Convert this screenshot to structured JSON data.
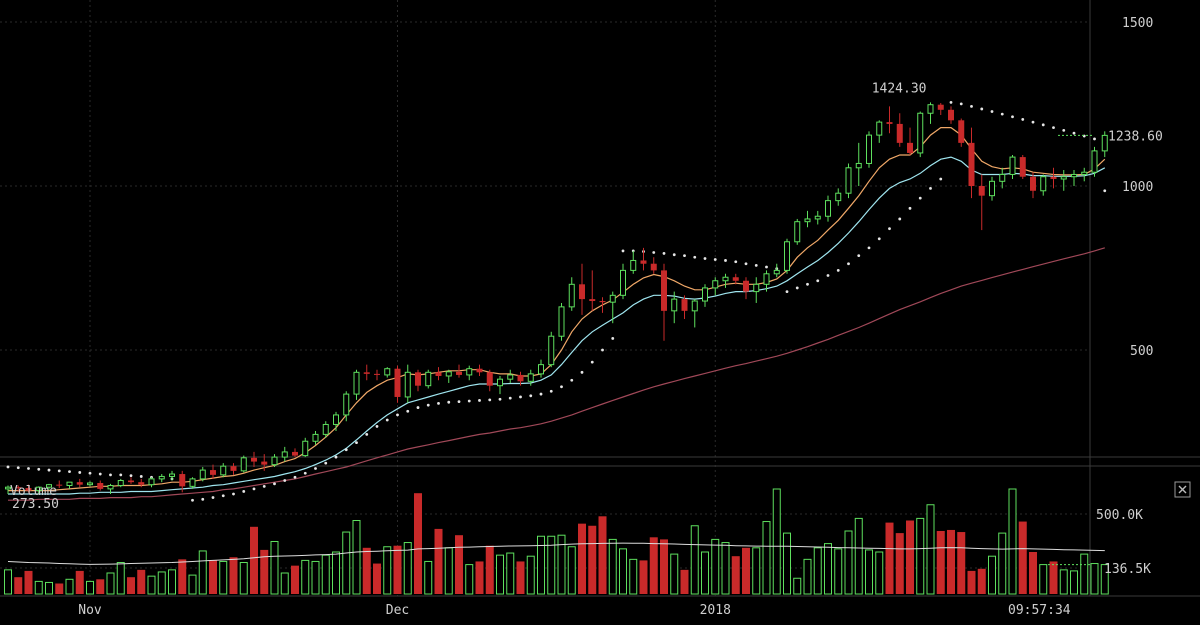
{
  "colors": {
    "up": "#5ee05e",
    "down": "#c92a2a",
    "ema_short": "#f0a868",
    "ema_long": "#9fe5ef",
    "sma": "#a04858",
    "psar": "#e6e6e6",
    "volume_ma": "#dddddd",
    "background": "#000000"
  },
  "price_panel": {
    "y_ticks": [
      "1500",
      "1000",
      "500"
    ],
    "last_price": "1238.60",
    "high_label": "1424.30",
    "low_label": "273.50"
  },
  "volume_panel": {
    "title": "Volume",
    "y_ticks": [
      "500.0K",
      "136.5K"
    ],
    "close_icon": "close-x-icon"
  },
  "x_axis": {
    "labels": [
      "Nov",
      "Dec",
      "2018"
    ],
    "clock": "09:57:34"
  },
  "chart_data": {
    "type": "candlestick",
    "price_scale": "log",
    "price_range": [
      245,
      1660
    ],
    "volume_range": [
      0,
      1200
    ],
    "interval": "1D",
    "start_date": "2017-10-24",
    "month_markers": [
      {
        "label": "Nov",
        "index": 8
      },
      {
        "label": "Dec",
        "index": 38
      },
      {
        "label": "2018",
        "index": 69
      }
    ],
    "ohlc": [
      [
        278,
        282,
        272,
        280
      ],
      [
        280,
        282,
        275,
        279
      ],
      [
        279,
        283,
        274,
        276
      ],
      [
        276,
        281,
        272,
        280
      ],
      [
        280,
        284,
        277,
        283
      ],
      [
        283,
        288,
        279,
        282
      ],
      [
        282,
        286,
        278,
        286
      ],
      [
        286,
        290,
        280,
        283
      ],
      [
        283,
        287,
        281,
        285
      ],
      [
        285,
        288,
        276,
        278
      ],
      [
        278,
        284,
        272,
        282
      ],
      [
        282,
        290,
        280,
        288
      ],
      [
        288,
        292,
        284,
        286
      ],
      [
        286,
        290,
        280,
        283
      ],
      [
        283,
        292,
        280,
        290
      ],
      [
        290,
        296,
        286,
        293
      ],
      [
        293,
        300,
        288,
        296
      ],
      [
        296,
        300,
        274,
        281
      ],
      [
        281,
        292,
        278,
        290
      ],
      [
        290,
        305,
        287,
        301
      ],
      [
        301,
        308,
        290,
        295
      ],
      [
        295,
        310,
        292,
        306
      ],
      [
        306,
        310,
        295,
        300
      ],
      [
        300,
        320,
        298,
        317
      ],
      [
        317,
        325,
        305,
        312
      ],
      [
        312,
        322,
        300,
        308
      ],
      [
        308,
        322,
        305,
        318
      ],
      [
        318,
        332,
        312,
        325
      ],
      [
        325,
        330,
        318,
        320
      ],
      [
        320,
        345,
        318,
        340
      ],
      [
        340,
        355,
        335,
        350
      ],
      [
        350,
        370,
        345,
        365
      ],
      [
        365,
        385,
        355,
        380
      ],
      [
        380,
        420,
        370,
        415
      ],
      [
        415,
        460,
        405,
        455
      ],
      [
        455,
        470,
        440,
        452
      ],
      [
        452,
        460,
        440,
        450
      ],
      [
        450,
        465,
        445,
        462
      ],
      [
        462,
        468,
        400,
        410
      ],
      [
        410,
        470,
        400,
        455
      ],
      [
        455,
        460,
        420,
        430
      ],
      [
        430,
        460,
        425,
        455
      ],
      [
        455,
        465,
        440,
        448
      ],
      [
        448,
        460,
        435,
        456
      ],
      [
        456,
        470,
        445,
        450
      ],
      [
        450,
        468,
        440,
        462
      ],
      [
        462,
        470,
        448,
        455
      ],
      [
        455,
        460,
        420,
        430
      ],
      [
        430,
        448,
        415,
        442
      ],
      [
        442,
        460,
        435,
        450
      ],
      [
        450,
        456,
        430,
        438
      ],
      [
        438,
        460,
        430,
        452
      ],
      [
        452,
        480,
        445,
        470
      ],
      [
        470,
        540,
        465,
        530
      ],
      [
        530,
        610,
        520,
        600
      ],
      [
        600,
        680,
        590,
        660
      ],
      [
        660,
        720,
        580,
        620
      ],
      [
        620,
        700,
        590,
        615
      ],
      [
        615,
        625,
        585,
        612
      ],
      [
        612,
        640,
        560,
        630
      ],
      [
        630,
        720,
        620,
        700
      ],
      [
        700,
        760,
        690,
        730
      ],
      [
        730,
        770,
        700,
        720
      ],
      [
        720,
        740,
        690,
        700
      ],
      [
        700,
        720,
        520,
        590
      ],
      [
        590,
        640,
        560,
        620
      ],
      [
        620,
        630,
        570,
        590
      ],
      [
        590,
        620,
        550,
        615
      ],
      [
        615,
        660,
        600,
        650
      ],
      [
        650,
        680,
        630,
        670
      ],
      [
        670,
        690,
        650,
        680
      ],
      [
        680,
        690,
        660,
        670
      ],
      [
        670,
        680,
        620,
        640
      ],
      [
        640,
        680,
        610,
        660
      ],
      [
        660,
        700,
        640,
        690
      ],
      [
        690,
        720,
        680,
        700
      ],
      [
        700,
        800,
        690,
        790
      ],
      [
        790,
        870,
        780,
        860
      ],
      [
        860,
        900,
        840,
        870
      ],
      [
        870,
        900,
        850,
        880
      ],
      [
        880,
        960,
        860,
        940
      ],
      [
        940,
        990,
        920,
        970
      ],
      [
        970,
        1100,
        950,
        1080
      ],
      [
        1080,
        1200,
        1000,
        1100
      ],
      [
        1100,
        1260,
        1080,
        1240
      ],
      [
        1240,
        1320,
        1200,
        1310
      ],
      [
        1310,
        1400,
        1250,
        1300
      ],
      [
        1300,
        1360,
        1180,
        1200
      ],
      [
        1200,
        1280,
        1140,
        1150
      ],
      [
        1150,
        1370,
        1130,
        1360
      ],
      [
        1360,
        1424,
        1300,
        1410
      ],
      [
        1410,
        1420,
        1350,
        1380
      ],
      [
        1380,
        1400,
        1300,
        1320
      ],
      [
        1320,
        1330,
        1180,
        1200
      ],
      [
        1200,
        1280,
        950,
        1000
      ],
      [
        1000,
        1050,
        830,
        960
      ],
      [
        960,
        1040,
        940,
        1020
      ],
      [
        1020,
        1080,
        990,
        1050
      ],
      [
        1050,
        1140,
        1030,
        1130
      ],
      [
        1130,
        1140,
        1030,
        1040
      ],
      [
        1040,
        1060,
        950,
        980
      ],
      [
        980,
        1050,
        960,
        1040
      ],
      [
        1040,
        1080,
        990,
        1030
      ],
      [
        1030,
        1070,
        980,
        1040
      ],
      [
        1040,
        1070,
        1000,
        1050
      ],
      [
        1050,
        1080,
        1020,
        1060
      ],
      [
        1060,
        1180,
        1040,
        1160
      ],
      [
        1160,
        1260,
        1130,
        1238.6
      ]
    ],
    "ema_short": [
      276,
      276,
      276,
      276,
      276,
      277,
      278,
      279,
      280,
      281,
      281,
      282,
      282,
      282,
      283,
      284,
      286,
      286,
      287,
      289,
      291,
      293,
      294,
      297,
      301,
      304,
      307,
      312,
      316,
      324,
      334,
      346,
      360,
      380,
      400,
      418,
      430,
      440,
      445,
      452,
      450,
      452,
      455,
      458,
      458,
      460,
      460,
      455,
      452,
      452,
      448,
      448,
      452,
      470,
      500,
      540,
      570,
      590,
      605,
      618,
      638,
      660,
      678,
      688,
      682,
      670,
      655,
      645,
      645,
      652,
      660,
      663,
      660,
      660,
      665,
      675,
      700,
      740,
      770,
      795,
      830,
      865,
      910,
      960,
      1020,
      1080,
      1120,
      1140,
      1140,
      1180,
      1240,
      1280,
      1280,
      1240,
      1170,
      1110,
      1085,
      1075,
      1080,
      1075,
      1060,
      1055,
      1050,
      1048,
      1048,
      1050,
      1075,
      1120
    ],
    "ema_long": [
      272,
      272,
      272,
      272,
      272,
      272,
      272,
      273,
      273,
      274,
      274,
      274,
      275,
      275,
      275,
      276,
      277,
      278,
      279,
      280,
      282,
      283,
      285,
      287,
      289,
      291,
      293,
      296,
      299,
      303,
      308,
      314,
      321,
      330,
      342,
      355,
      368,
      380,
      390,
      400,
      405,
      410,
      415,
      420,
      425,
      430,
      433,
      433,
      433,
      434,
      434,
      435,
      440,
      450,
      470,
      495,
      520,
      540,
      555,
      570,
      585,
      605,
      620,
      630,
      630,
      628,
      622,
      620,
      623,
      628,
      635,
      640,
      640,
      643,
      648,
      655,
      670,
      690,
      710,
      730,
      755,
      785,
      820,
      860,
      905,
      950,
      990,
      1015,
      1030,
      1055,
      1090,
      1120,
      1130,
      1110,
      1070,
      1050,
      1050,
      1050,
      1055,
      1052,
      1045,
      1045,
      1042,
      1042,
      1042,
      1044,
      1055,
      1080
    ],
    "sma": [
      265,
      265,
      265,
      266,
      266,
      266,
      266,
      267,
      267,
      267,
      268,
      268,
      268,
      269,
      269,
      270,
      271,
      272,
      273,
      274,
      275,
      277,
      278,
      280,
      282,
      284,
      286,
      288,
      290,
      293,
      296,
      299,
      302,
      305,
      309,
      313,
      317,
      321,
      325,
      329,
      332,
      335,
      338,
      341,
      344,
      347,
      350,
      352,
      355,
      358,
      360,
      363,
      366,
      370,
      375,
      380,
      386,
      392,
      398,
      404,
      410,
      416,
      422,
      428,
      433,
      438,
      443,
      448,
      453,
      458,
      463,
      468,
      472,
      477,
      482,
      487,
      493,
      500,
      507,
      515,
      523,
      532,
      541,
      550,
      560,
      571,
      582,
      593,
      603,
      613,
      624,
      635,
      645,
      655,
      663,
      671,
      679,
      687,
      695,
      703,
      711,
      719,
      727,
      735,
      743,
      751,
      760,
      770
    ],
    "psar": [
      305,
      304,
      303,
      302,
      301,
      300,
      299,
      298,
      297,
      296,
      295,
      295,
      294,
      293,
      292,
      291,
      290,
      290,
      265,
      266,
      268,
      270,
      272,
      275,
      278,
      281,
      284,
      288,
      292,
      297,
      303,
      310,
      318,
      328,
      338,
      350,
      362,
      372,
      380,
      386,
      392,
      396,
      399,
      401,
      402,
      403,
      404,
      405,
      406,
      408,
      410,
      412,
      415,
      420,
      428,
      440,
      455,
      475,
      500,
      525,
      760,
      760,
      758,
      755,
      752,
      748,
      745,
      740,
      736,
      733,
      730,
      726,
      720,
      715,
      710,
      705,
      640,
      650,
      660,
      670,
      685,
      700,
      720,
      745,
      770,
      800,
      835,
      870,
      910,
      950,
      990,
      1030,
      1424,
      1415,
      1400,
      1385,
      1370,
      1355,
      1340,
      1325,
      1310,
      1295,
      1280,
      1265,
      1250,
      1235,
      1220,
      980
    ],
    "volume": [
      230,
      160,
      220,
      120,
      110,
      100,
      140,
      220,
      120,
      140,
      200,
      300,
      160,
      230,
      170,
      210,
      230,
      330,
      180,
      410,
      320,
      310,
      350,
      300,
      640,
      420,
      500,
      200,
      270,
      320,
      310,
      370,
      400,
      590,
      700,
      440,
      290,
      450,
      460,
      490,
      960,
      310,
      620,
      440,
      560,
      280,
      310,
      460,
      370,
      390,
      310,
      360,
      550,
      550,
      560,
      450,
      670,
      650,
      740,
      520,
      430,
      330,
      320,
      540,
      520,
      380,
      230,
      650,
      400,
      520,
      490,
      360,
      440,
      440,
      690,
      1000,
      580,
      150,
      330,
      440,
      480,
      430,
      600,
      720,
      420,
      400,
      680,
      580,
      700,
      720,
      850,
      600,
      610,
      590,
      220,
      240,
      360,
      580,
      1000,
      690,
      400,
      280,
      310,
      230,
      220,
      380,
      290,
      280
    ],
    "volume_ma": [
      310,
      305,
      300,
      298,
      295,
      290,
      288,
      285,
      282,
      283,
      285,
      287,
      290,
      292,
      295,
      298,
      300,
      305,
      310,
      315,
      320,
      325,
      330,
      335,
      345,
      355,
      360,
      362,
      365,
      368,
      372,
      375,
      380,
      390,
      400,
      405,
      408,
      412,
      415,
      418,
      430,
      432,
      435,
      440,
      445,
      447,
      450,
      452,
      455,
      457,
      458,
      459,
      462,
      465,
      470,
      475,
      478,
      480,
      482,
      484,
      485,
      484,
      483,
      480,
      478,
      476,
      472,
      470,
      468,
      466,
      464,
      460,
      458,
      456,
      455,
      455,
      455,
      452,
      450,
      448,
      445,
      442,
      440,
      438,
      436,
      434,
      432,
      430,
      430,
      432,
      436,
      440,
      442,
      440,
      436,
      432,
      430,
      428,
      430,
      432,
      430,
      428,
      425,
      422,
      420,
      418,
      415,
      413
    ]
  }
}
